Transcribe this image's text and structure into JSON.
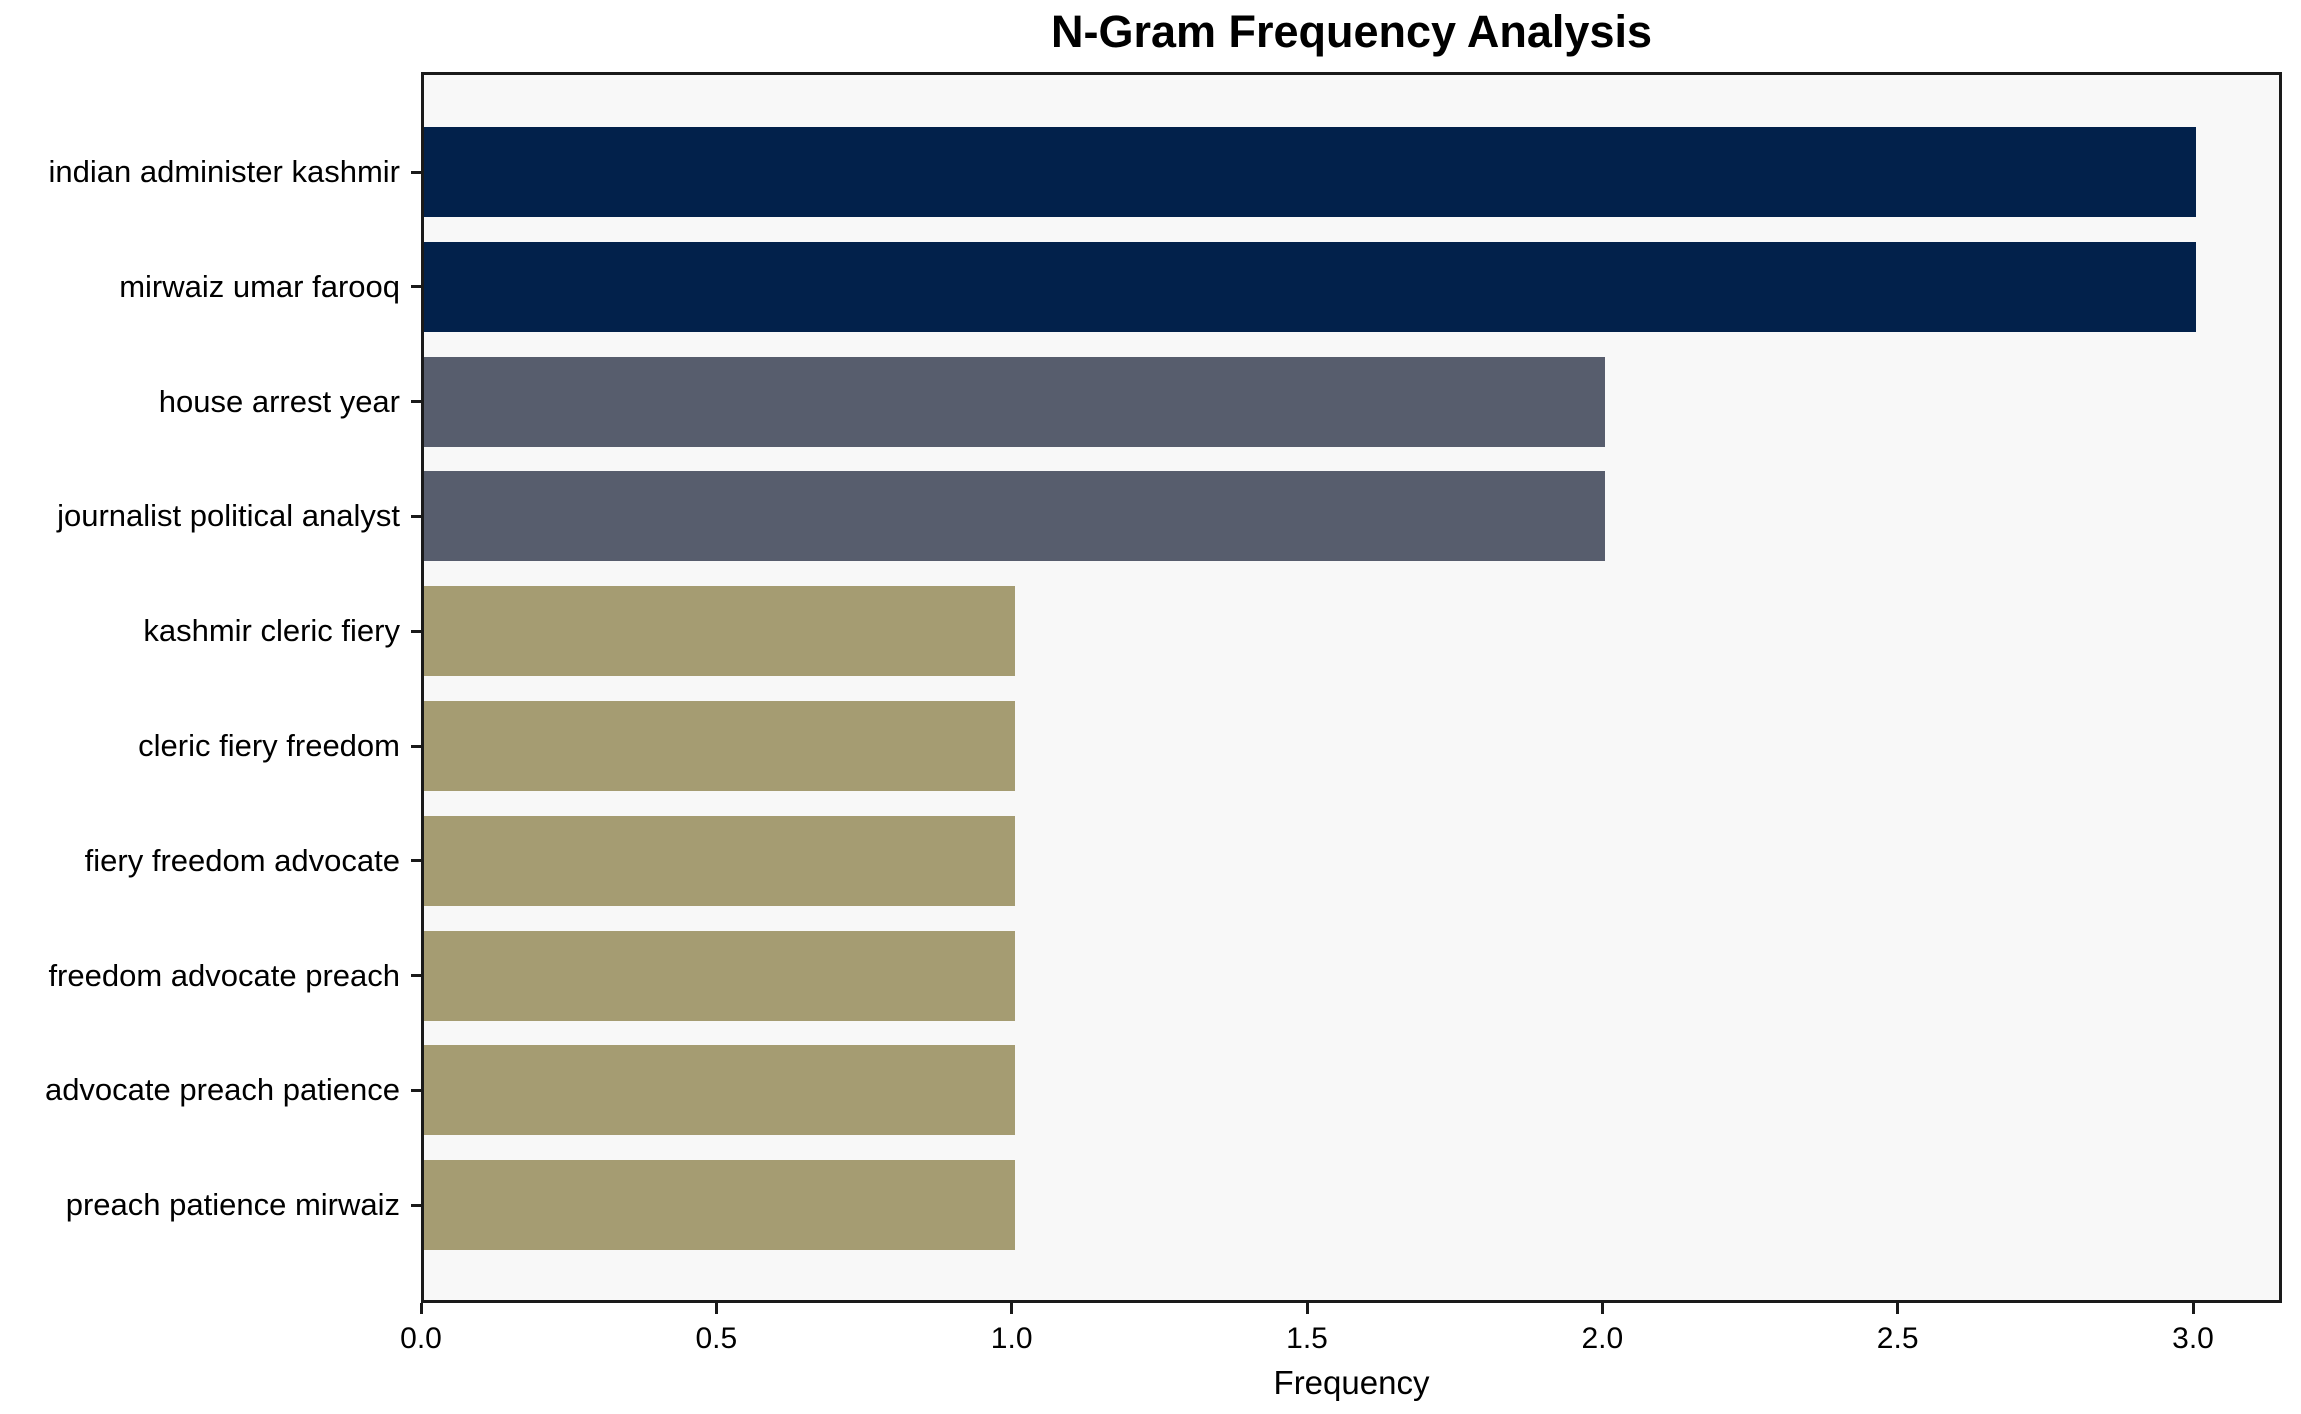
{
  "chart_data": {
    "type": "bar",
    "orientation": "horizontal",
    "title": "N-Gram Frequency Analysis",
    "xlabel": "Frequency",
    "ylabel": "",
    "xlim": [
      0,
      3.15
    ],
    "xticks": [
      0.0,
      0.5,
      1.0,
      1.5,
      2.0,
      2.5,
      3.0
    ],
    "grid": false,
    "legend": "none",
    "categories": [
      "indian administer kashmir",
      "mirwaiz umar farooq",
      "house arrest year",
      "journalist political analyst",
      "kashmir cleric fiery",
      "cleric fiery freedom",
      "fiery freedom advocate",
      "freedom advocate preach",
      "advocate preach patience",
      "preach patience mirwaiz"
    ],
    "values": [
      3,
      3,
      2,
      2,
      1,
      1,
      1,
      1,
      1,
      1
    ],
    "bar_colors": [
      "#02214b",
      "#02214b",
      "#575d6d",
      "#575d6d",
      "#a59c72",
      "#a59c72",
      "#a59c72",
      "#a59c72",
      "#a59c72",
      "#a59c72"
    ],
    "colors": {
      "freq3": "#02214b",
      "freq2": "#575d6d",
      "freq1": "#a59c72",
      "plot_background": "#f8f8f8",
      "figure_background": "#ffffff",
      "axis": "#1a1a1a",
      "text": "#000000"
    }
  }
}
